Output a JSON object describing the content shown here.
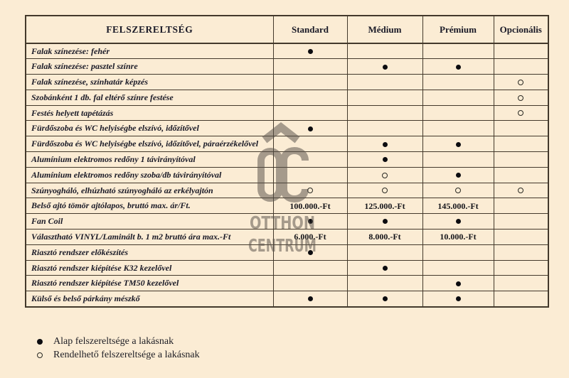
{
  "table": {
    "title": "FELSZERELTSÉG",
    "columns": [
      "Standard",
      "Médium",
      "Prémium",
      "Opcionális"
    ],
    "rows": [
      {
        "label": "Falak színezése: fehér",
        "values": [
          "filled",
          "",
          "",
          ""
        ]
      },
      {
        "label": "Falak színezése: pasztel színre",
        "values": [
          "",
          "filled",
          "filled",
          ""
        ]
      },
      {
        "label": "Falak színezése, színhatár képzés",
        "values": [
          "",
          "",
          "",
          "hollow"
        ]
      },
      {
        "label": "Szobánként 1 db. fal eltérő színre festése",
        "values": [
          "",
          "",
          "",
          "hollow"
        ]
      },
      {
        "label": "Festés helyett tapétázás",
        "values": [
          "",
          "",
          "",
          "hollow"
        ]
      },
      {
        "label": "Fürdőszoba és WC helyiségbe elszívó, időzítővel",
        "values": [
          "filled",
          "",
          "",
          ""
        ]
      },
      {
        "label": "Fürdőszoba és WC helyiségbe elszívó, időzítővel, páraérzékelővel",
        "values": [
          "",
          "filled",
          "filled",
          ""
        ]
      },
      {
        "label": "Alumínium elektromos redőny 1 távirányítóval",
        "values": [
          "",
          "filled",
          "",
          ""
        ]
      },
      {
        "label": "Alumínium elektromos redőny szoba/db távirányítóval",
        "values": [
          "",
          "hollow",
          "filled",
          ""
        ]
      },
      {
        "label": "Szúnyogháló, elhúzható szúnyogháló az erkélyajtón",
        "values": [
          "hollow",
          "hollow",
          "hollow",
          "hollow"
        ]
      },
      {
        "label": "Belső ajtó tömör ajtólapos, bruttó max. ár/Ft.",
        "values": [
          "100.000.-Ft",
          "125.000.-Ft",
          "145.000.-Ft",
          ""
        ]
      },
      {
        "label": "Fan Coil",
        "values": [
          "filled",
          "filled",
          "filled",
          ""
        ]
      },
      {
        "label": "Választható VINYL/Laminált b. 1 m2 bruttó ára max.-Ft",
        "values": [
          "6.000.-Ft",
          "8.000.-Ft",
          "10.000.-Ft",
          ""
        ]
      },
      {
        "label": "Riasztó rendszer előkészítés",
        "values": [
          "filled",
          "",
          "",
          ""
        ]
      },
      {
        "label": "Riasztó rendszer kiépítése K32 kezelővel",
        "values": [
          "",
          "filled",
          "",
          ""
        ]
      },
      {
        "label": "Riasztó rendszer kiépítése TM50 kezelővel",
        "values": [
          "",
          "",
          "filled",
          ""
        ]
      },
      {
        "label": "Külső és belső párkány mészkő",
        "values": [
          "filled",
          "filled",
          "filled",
          ""
        ]
      }
    ]
  },
  "legend": {
    "items": [
      {
        "marker": "filled",
        "label": "Alap felszereltsége a lakásnak"
      },
      {
        "marker": "hollow",
        "label": "Rendelhető felszereltsége a lakásnak"
      }
    ]
  },
  "watermark": {
    "letters": "OC",
    "line1": "OTTHON",
    "line2": "CENTRUM"
  },
  "colors": {
    "background": "#fbecd4",
    "border": "#43392b",
    "text": "#191926",
    "watermark_gray": "#57514a"
  }
}
